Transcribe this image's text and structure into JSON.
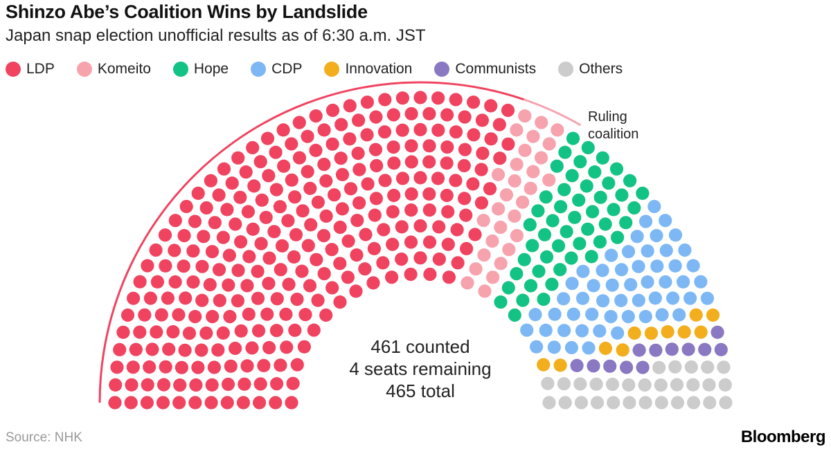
{
  "title": "Shinzo Abe’s Coalition Wins by Landslide",
  "subtitle": "Japan snap election unofficial results as of 6:30 a.m. JST",
  "source": "Source: NHK",
  "brand": "Bloomberg",
  "chart_data": {
    "type": "parliament",
    "total_seats": 465,
    "series": [
      {
        "name": "LDP",
        "value": 280,
        "color": "#f0435f"
      },
      {
        "name": "Komeito",
        "value": 29,
        "color": "#f7a3ad"
      },
      {
        "name": "Hope",
        "value": 50,
        "color": "#13c385"
      },
      {
        "name": "CDP",
        "value": 54,
        "color": "#7db8f5"
      },
      {
        "name": "Innovation",
        "value": 11,
        "color": "#f2ae1c"
      },
      {
        "name": "Communists",
        "value": 12,
        "color": "#8a78c2"
      },
      {
        "name": "Others",
        "value": 25,
        "color": "#cccccc"
      }
    ],
    "remaining": 4,
    "remaining_color": "#cccccc",
    "annotation_arc": {
      "label_line1": "Ruling",
      "label_line2": "coalition",
      "covers": [
        "LDP",
        "Komeito"
      ],
      "color": "#f0435f",
      "secondary_color": "#f7a3ad"
    },
    "center_text": [
      "461 counted",
      "4 seats remaining",
      "465 total"
    ]
  }
}
